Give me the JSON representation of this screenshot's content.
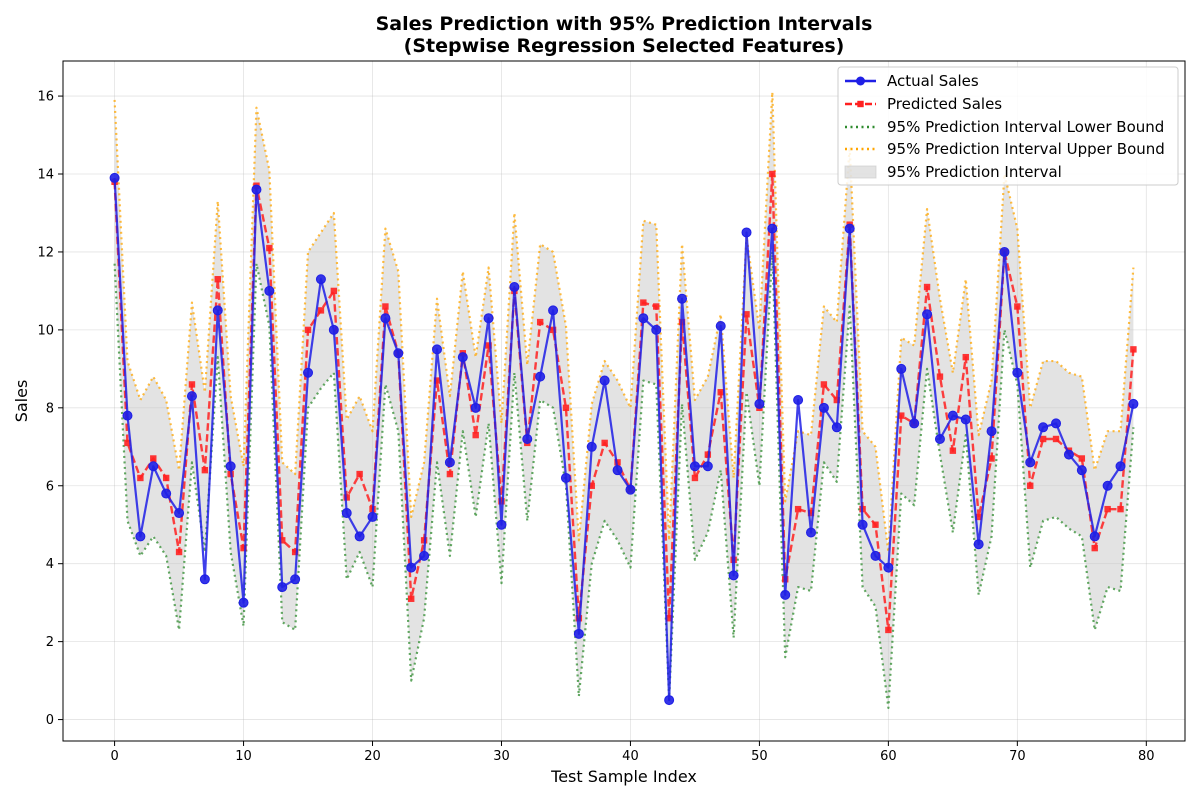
{
  "chart_data": {
    "type": "line",
    "title": "Sales Prediction with 95% Prediction Intervals",
    "subtitle": "(Stepwise Regression Selected Features)",
    "xlabel": "Test Sample Index",
    "ylabel": "Sales",
    "xlim": [
      -4,
      83
    ],
    "ylim": [
      -0.55,
      16.9
    ],
    "xticks": [
      "0",
      "10",
      "20",
      "30",
      "40",
      "50",
      "60",
      "70",
      "80"
    ],
    "yticks": [
      "0",
      "2",
      "4",
      "6",
      "8",
      "10",
      "12",
      "14",
      "16"
    ],
    "grid": true,
    "legend_position": "top-right",
    "x": [
      0,
      1,
      2,
      3,
      4,
      5,
      6,
      7,
      8,
      9,
      10,
      11,
      12,
      13,
      14,
      15,
      16,
      17,
      18,
      19,
      20,
      21,
      22,
      23,
      24,
      25,
      26,
      27,
      28,
      29,
      30,
      31,
      32,
      33,
      34,
      35,
      36,
      37,
      38,
      39,
      40,
      41,
      42,
      43,
      44,
      45,
      46,
      47,
      48,
      49,
      50,
      51,
      52,
      53,
      54,
      55,
      56,
      57,
      58,
      59,
      60,
      61,
      62,
      63,
      64,
      65,
      66,
      67,
      68,
      69,
      70,
      71,
      72,
      73,
      74,
      75,
      76,
      77,
      78,
      79
    ],
    "series": [
      {
        "name": "Actual Sales",
        "color": "#1f1fe6",
        "style": "solid-circle",
        "values": [
          13.9,
          7.8,
          4.7,
          6.5,
          5.8,
          5.3,
          8.3,
          3.6,
          10.5,
          6.5,
          3.0,
          13.6,
          11.0,
          3.4,
          3.6,
          8.9,
          11.3,
          10.0,
          5.3,
          4.7,
          5.2,
          10.3,
          9.4,
          3.9,
          4.2,
          9.5,
          6.6,
          9.3,
          8.0,
          10.3,
          5.0,
          11.1,
          7.2,
          8.8,
          10.5,
          6.2,
          2.2,
          7.0,
          8.7,
          6.4,
          5.9,
          10.3,
          10.0,
          0.5,
          10.8,
          6.5,
          6.5,
          10.1,
          3.7,
          12.5,
          8.1,
          12.6,
          3.2,
          8.2,
          4.8,
          8.0,
          7.5,
          12.6,
          5.0,
          4.2,
          3.9,
          9.0,
          7.6,
          10.4,
          7.2,
          7.8,
          7.7,
          4.5,
          7.4,
          12.0,
          8.9,
          6.6,
          7.5,
          7.6,
          6.8,
          6.4,
          4.7,
          6.0,
          6.5,
          8.1
        ]
      },
      {
        "name": "Predicted Sales",
        "color": "#ff2020",
        "style": "dashed-square",
        "values": [
          13.8,
          7.1,
          6.2,
          6.7,
          6.2,
          4.3,
          8.6,
          6.4,
          11.3,
          6.3,
          4.4,
          13.7,
          12.1,
          4.6,
          4.3,
          10.0,
          10.5,
          11.0,
          5.7,
          6.3,
          5.4,
          10.6,
          9.4,
          3.1,
          4.6,
          8.7,
          6.3,
          9.4,
          7.3,
          9.6,
          5.6,
          11.0,
          7.1,
          10.2,
          10.0,
          8.0,
          2.6,
          6.0,
          7.1,
          6.6,
          5.9,
          10.7,
          10.6,
          2.6,
          10.2,
          6.2,
          6.8,
          8.4,
          4.1,
          10.4,
          8.0,
          14.0,
          3.6,
          5.4,
          5.3,
          8.6,
          8.2,
          12.7,
          5.4,
          5.0,
          2.3,
          7.8,
          7.6,
          11.1,
          8.8,
          6.9,
          9.3,
          5.2,
          6.7,
          12.0,
          10.6,
          6.0,
          7.2,
          7.2,
          6.9,
          6.7,
          4.4,
          5.4,
          5.4,
          9.5
        ]
      },
      {
        "name": "95% Prediction Interval Lower Bound",
        "color": "#2e8b2e",
        "style": "dotted",
        "values": [
          11.7,
          5.1,
          4.2,
          4.7,
          4.2,
          2.3,
          6.6,
          4.3,
          9.3,
          4.3,
          2.4,
          11.7,
          10.1,
          2.5,
          2.3,
          8.0,
          8.5,
          8.9,
          3.6,
          4.3,
          3.4,
          8.6,
          7.4,
          1.0,
          2.6,
          6.6,
          4.2,
          7.4,
          5.2,
          7.6,
          3.5,
          8.9,
          5.1,
          8.2,
          8.0,
          6.0,
          0.6,
          4.0,
          5.1,
          4.6,
          3.9,
          8.7,
          8.6,
          0.5,
          8.1,
          4.1,
          4.8,
          6.4,
          2.1,
          8.4,
          6.0,
          12.0,
          1.6,
          3.4,
          3.3,
          6.6,
          6.1,
          10.6,
          3.4,
          2.9,
          0.3,
          5.8,
          5.5,
          9.0,
          6.8,
          4.8,
          7.3,
          3.2,
          4.7,
          10.0,
          8.6,
          3.9,
          5.1,
          5.2,
          4.9,
          4.7,
          2.3,
          3.4,
          3.3,
          7.5
        ]
      },
      {
        "name": "95% Prediction Interval Upper Bound",
        "color": "#ffa500",
        "style": "dotted",
        "values": [
          15.9,
          9.2,
          8.2,
          8.8,
          8.2,
          6.4,
          10.7,
          8.4,
          13.3,
          8.3,
          6.5,
          15.7,
          14.1,
          6.6,
          6.3,
          12.0,
          12.5,
          13.0,
          7.7,
          8.3,
          7.4,
          12.6,
          11.5,
          5.2,
          6.6,
          10.8,
          8.3,
          11.5,
          9.3,
          11.6,
          7.6,
          13.0,
          9.1,
          12.2,
          12.0,
          10.1,
          4.6,
          8.1,
          9.2,
          8.7,
          8.0,
          12.8,
          12.7,
          4.6,
          12.2,
          8.2,
          8.8,
          10.4,
          6.2,
          12.4,
          10.0,
          16.1,
          5.6,
          7.4,
          7.3,
          10.6,
          10.2,
          14.7,
          7.4,
          7.0,
          4.3,
          9.8,
          9.6,
          13.1,
          10.8,
          8.9,
          11.3,
          7.3,
          8.7,
          14.0,
          12.6,
          8.0,
          9.2,
          9.2,
          8.9,
          8.8,
          6.4,
          7.4,
          7.4,
          11.6
        ]
      }
    ],
    "band": {
      "name": "95% Prediction Interval",
      "color": "#c8c8c8",
      "opacity": 0.5
    }
  }
}
